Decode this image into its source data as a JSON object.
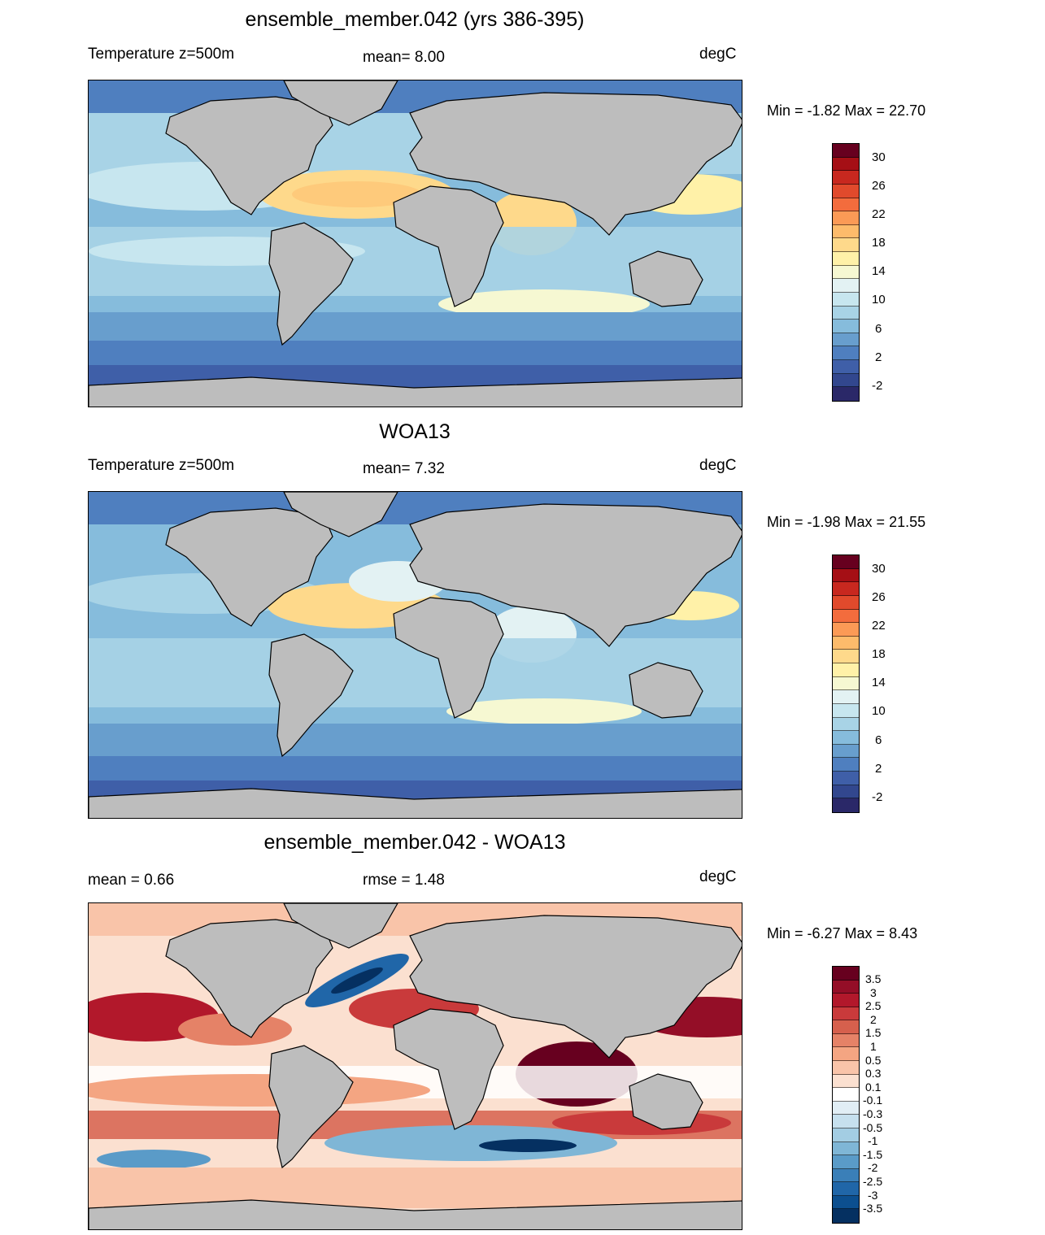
{
  "panels": [
    {
      "title": "ensemble_member.042 (yrs 386-395)",
      "left_label": "Temperature z=500m",
      "center_label": "mean=   8.00",
      "right_label": "degC",
      "minmax": "Min =  -1.82 Max =  22.70",
      "colorbar_ticks": [
        "30",
        "26",
        "22",
        "18",
        "14",
        "10",
        "6",
        "2",
        "-2"
      ]
    },
    {
      "title": "WOA13",
      "left_label": "Temperature z=500m",
      "center_label": "mean=   7.32",
      "right_label": "degC",
      "minmax": "Min =  -1.98 Max =  21.55",
      "colorbar_ticks": [
        "30",
        "26",
        "22",
        "18",
        "14",
        "10",
        "6",
        "2",
        "-2"
      ]
    },
    {
      "title": "ensemble_member.042 - WOA13",
      "left_label": "mean =   0.66",
      "center_label": "rmse =   1.48",
      "right_label": "degC",
      "minmax": "Min =  -6.27 Max =   8.43",
      "colorbar_ticks": [
        "3.5",
        "3",
        "2.5",
        "2",
        "1.5",
        "1",
        "0.5",
        "0.3",
        "0.1",
        "-0.1",
        "-0.3",
        "-0.5",
        "-1",
        "-1.5",
        "-2",
        "-2.5",
        "-3",
        "-3.5"
      ]
    }
  ],
  "colors": {
    "land": "#bdbdbd",
    "temp_scale": [
      "#67001f",
      "#a50f15",
      "#c8281f",
      "#e14a2c",
      "#f36c3d",
      "#fb9a56",
      "#fdbb6b",
      "#fed98b",
      "#fff1a8",
      "#f6f8d2",
      "#e3f2f3",
      "#c7e6ef",
      "#a8d3e6",
      "#86bcdc",
      "#689ecd",
      "#4f7fbf",
      "#3f5fa8",
      "#32478e",
      "#2a2868"
    ],
    "diff_scale": [
      "#67001f",
      "#940e27",
      "#b2182b",
      "#c93a3b",
      "#d6604d",
      "#e58267",
      "#f4a582",
      "#f9c4a9",
      "#fbe0d0",
      "#ffffff",
      "#e1eef5",
      "#c6e0ee",
      "#a3cde3",
      "#7fb6d6",
      "#5a9bc8",
      "#3a7fb8",
      "#2066a8",
      "#0c4f8f",
      "#053061"
    ]
  }
}
